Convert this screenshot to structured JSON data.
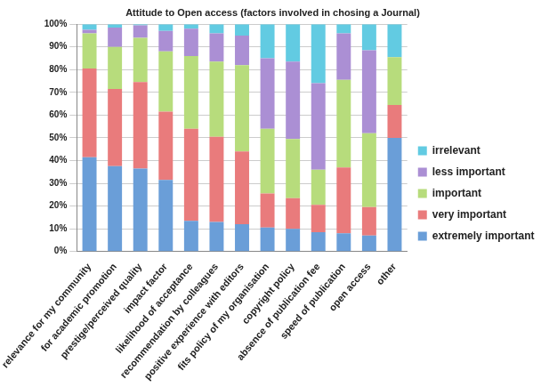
{
  "chart_data": {
    "type": "bar",
    "title": "Attitude to Open access (factors involved in chosing a Journal)",
    "stacked": true,
    "grid": true,
    "legend": "right",
    "categories": [
      "relevance for my community",
      "for academic promotion",
      "prestige/perceived quality",
      "impact factor",
      "likelihood of acceptance",
      "recommendation by colleagues",
      "positive experience with editors",
      "fits policy of my organisation",
      "copyright policy",
      "absence of publication fee",
      "speed of publication",
      "open access",
      "other"
    ],
    "series": [
      {
        "name": "extremely important",
        "color": "#6a9ed8",
        "values": [
          41.5,
          37.5,
          36.5,
          31.5,
          13.5,
          13,
          12,
          10.5,
          10,
          8.5,
          8,
          7,
          50
        ]
      },
      {
        "name": "very important",
        "color": "#e97b7c",
        "values": [
          39,
          34,
          38,
          30,
          40.5,
          37.5,
          32,
          15,
          13.5,
          12,
          29,
          12.5,
          14.5
        ]
      },
      {
        "name": "important",
        "color": "#b7dc7c",
        "values": [
          15.5,
          18.5,
          19.5,
          26.5,
          32,
          33,
          38,
          28.5,
          26,
          15.5,
          38.5,
          32.5,
          21
        ]
      },
      {
        "name": "less important",
        "color": "#ab8fd4",
        "values": [
          1.5,
          8.5,
          5.5,
          9,
          12,
          12.5,
          13,
          31,
          34,
          38,
          20.5,
          36.5,
          0
        ]
      },
      {
        "name": "irrelevant",
        "color": "#62cbe2",
        "values": [
          2.5,
          1.5,
          0.5,
          3,
          2,
          4,
          5,
          15,
          16.5,
          26,
          4,
          11.5,
          14.5
        ]
      }
    ],
    "ylim": [
      0,
      100
    ],
    "yticks": [
      {
        "value": 0,
        "label": "0%"
      },
      {
        "value": 10,
        "label": "10%"
      },
      {
        "value": 20,
        "label": "20%"
      },
      {
        "value": 30,
        "label": "30%"
      },
      {
        "value": 40,
        "label": "40%"
      },
      {
        "value": 50,
        "label": "50%"
      },
      {
        "value": 60,
        "label": "60%"
      },
      {
        "value": 70,
        "label": "70%"
      },
      {
        "value": 80,
        "label": "80%"
      },
      {
        "value": 90,
        "label": "90%"
      },
      {
        "value": 100,
        "label": "100%"
      }
    ]
  }
}
